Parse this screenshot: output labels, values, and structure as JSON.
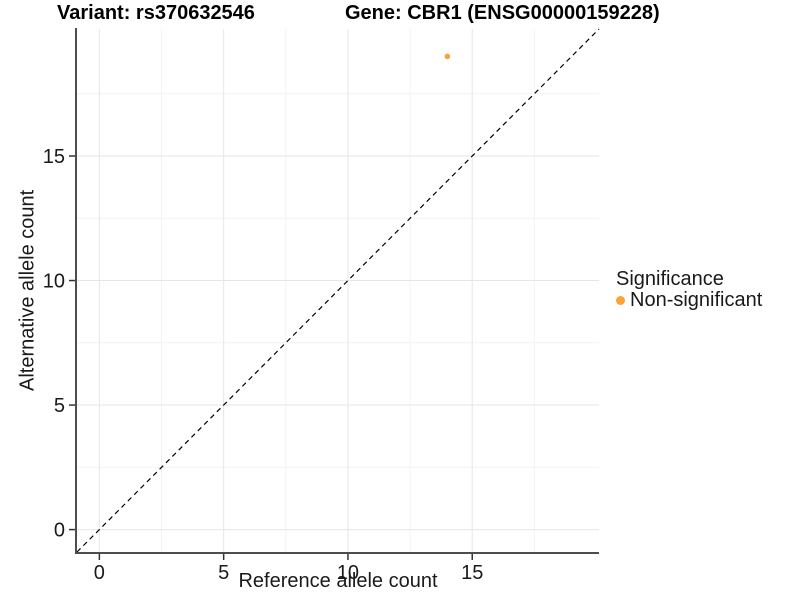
{
  "titles": {
    "variant": "Variant: rs370632546",
    "gene": "Gene: CBR1 (ENSG00000159228)"
  },
  "axes": {
    "x_label": "Reference allele count",
    "y_label": "Alternative allele count"
  },
  "legend": {
    "title": "Significance",
    "items": [
      {
        "label": "Non-significant",
        "color": "#FBA238"
      }
    ]
  },
  "chart_data": {
    "type": "scatter",
    "title_left": "Variant: rs370632546",
    "title_right": "Gene: CBR1 (ENSG00000159228)",
    "xlabel": "Reference allele count",
    "ylabel": "Alternative allele count",
    "series": [
      {
        "name": "Non-significant",
        "color": "#FBA238",
        "points": [
          {
            "x": 14,
            "y": 19
          }
        ]
      }
    ],
    "xlim": [
      -0.9,
      20.1
    ],
    "ylim": [
      -0.9,
      20.1
    ],
    "x_ticks": [
      0,
      5,
      10,
      15
    ],
    "y_ticks": [
      0,
      5,
      10,
      15
    ],
    "x_minor_ticks": [
      2.5,
      7.5,
      12.5,
      17.5
    ],
    "y_minor_ticks": [
      2.5,
      7.5,
      12.5,
      17.5
    ],
    "reference_line": {
      "equation": "y = x",
      "style": "dashed",
      "color": "#000000"
    },
    "grid": true,
    "legend_position": "right",
    "colors": {
      "major_grid": "#E6E6E6",
      "minor_grid": "#F2F2F2",
      "axis_line": "#4D4D4D",
      "tick_mark": "#333333",
      "tick_text": "#1A1A1A",
      "point": "#FBA238"
    }
  }
}
